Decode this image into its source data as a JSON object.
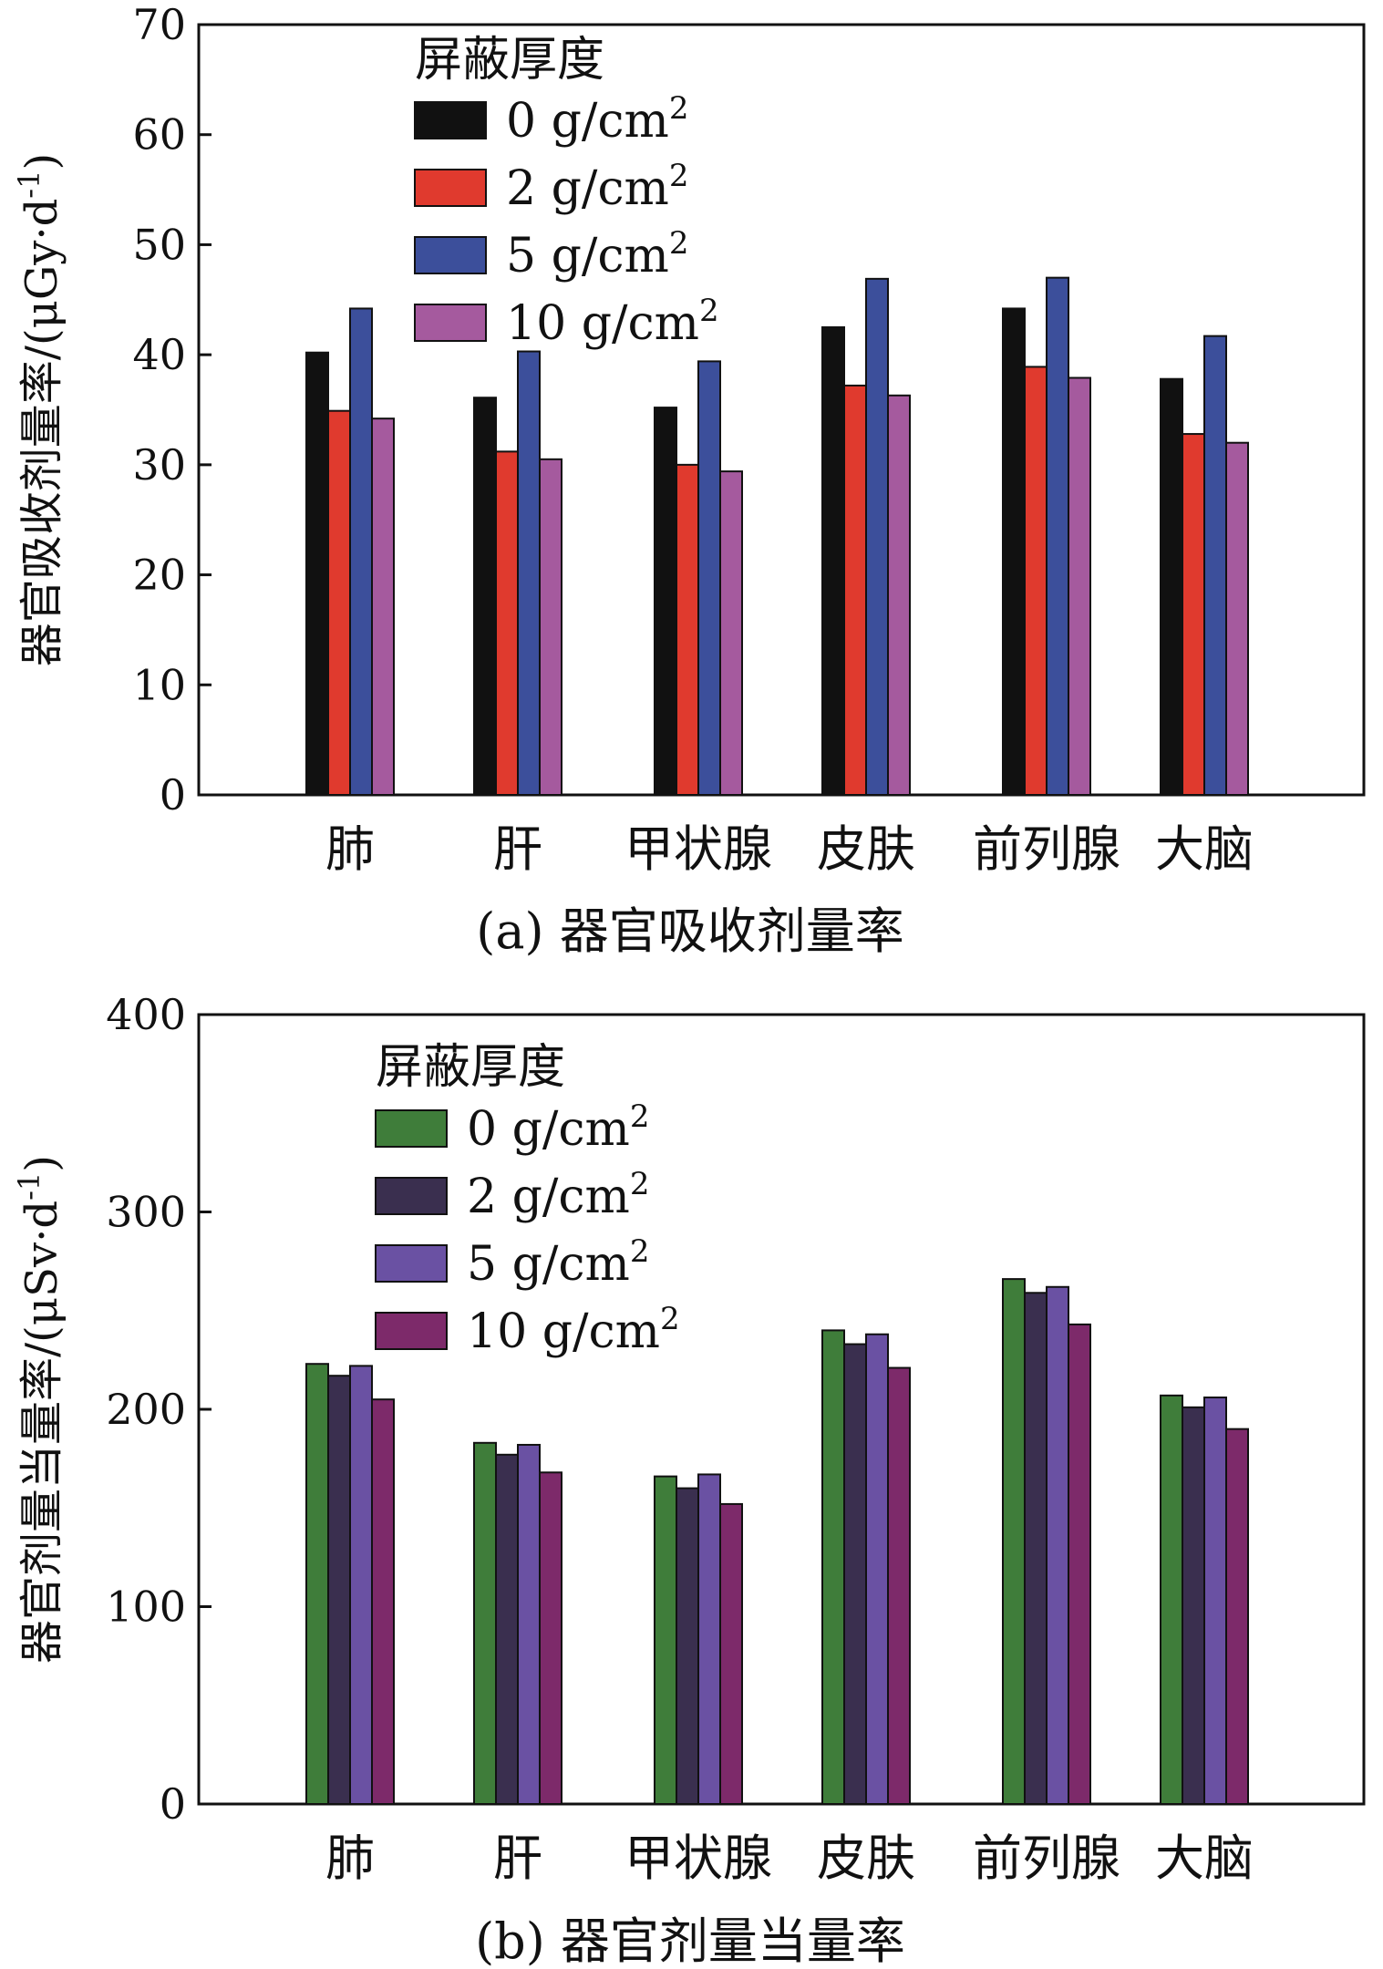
{
  "chart_data": [
    {
      "type": "bar",
      "panel": "a",
      "caption": "(a) 器官吸收剂量率",
      "ylabel": "器官吸收剂量率/(μGy·d⁻¹)",
      "xlabel": "",
      "ylim": [
        0,
        70
      ],
      "yticks": [
        "0",
        "10",
        "20",
        "30",
        "40",
        "50",
        "60",
        "70"
      ],
      "ytick_values": [
        0,
        10,
        20,
        30,
        40,
        50,
        60,
        70
      ],
      "categories": [
        "肺",
        "肝",
        "甲状腺",
        "皮肤",
        "前列腺",
        "大脑"
      ],
      "legend_title": "屏蔽厚度",
      "legend_position": "top-left",
      "grid": false,
      "series": [
        {
          "name": "0 g/cm²",
          "color": "#111111",
          "values": [
            40.2,
            36.1,
            35.2,
            42.5,
            44.2,
            37.8
          ]
        },
        {
          "name": "2 g/cm²",
          "color": "#e03a2e",
          "values": [
            34.9,
            31.2,
            30.0,
            37.2,
            38.9,
            32.8
          ]
        },
        {
          "name": "5 g/cm²",
          "color": "#3c4f9b",
          "values": [
            44.2,
            40.3,
            39.4,
            46.9,
            47.0,
            41.7
          ]
        },
        {
          "name": "10 g/cm²",
          "color": "#a55a9e",
          "values": [
            34.2,
            30.5,
            29.4,
            36.3,
            37.9,
            32.0
          ]
        }
      ]
    },
    {
      "type": "bar",
      "panel": "b",
      "caption": "(b) 器官剂量当量率",
      "ylabel": "器官剂量当量率/(μSv·d⁻¹)",
      "xlabel": "",
      "ylim": [
        0,
        400
      ],
      "yticks": [
        "0",
        "100",
        "200",
        "300",
        "400"
      ],
      "ytick_values": [
        0,
        100,
        200,
        300,
        400
      ],
      "categories": [
        "肺",
        "肝",
        "甲状腺",
        "皮肤",
        "前列腺",
        "大脑"
      ],
      "legend_title": "屏蔽厚度",
      "legend_position": "top-left",
      "grid": false,
      "series": [
        {
          "name": "0 g/cm²",
          "color": "#3f7d3a",
          "values": [
            223,
            183,
            166,
            240,
            266,
            207
          ]
        },
        {
          "name": "2 g/cm²",
          "color": "#3a2f4f",
          "values": [
            217,
            177,
            160,
            233,
            259,
            201
          ]
        },
        {
          "name": "5 g/cm²",
          "color": "#6a51a3",
          "values": [
            222,
            182,
            167,
            238,
            262,
            206
          ]
        },
        {
          "name": "10 g/cm²",
          "color": "#7d2a6a",
          "values": [
            205,
            168,
            152,
            221,
            243,
            190
          ]
        }
      ]
    }
  ]
}
